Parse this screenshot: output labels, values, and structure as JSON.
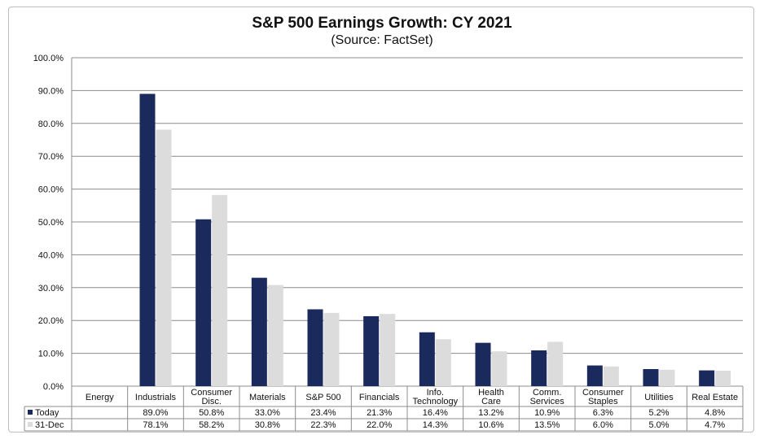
{
  "chart_data": {
    "type": "bar",
    "title": "S&P 500 Earnings Growth: CY 2021",
    "subtitle": "(Source: FactSet)",
    "categories": [
      "Energy",
      "Industrials",
      "Consumer Disc.",
      "Materials",
      "S&P 500",
      "Financials",
      "Info. Technology",
      "Health Care",
      "Comm. Services",
      "Consumer Staples",
      "Utilities",
      "Real Estate"
    ],
    "series": [
      {
        "name": "Today",
        "color": "#1b2a5c",
        "values": [
          null,
          89.0,
          50.8,
          33.0,
          23.4,
          21.3,
          16.4,
          13.2,
          10.9,
          6.3,
          5.2,
          4.8
        ],
        "labels": [
          "",
          "89.0%",
          "50.8%",
          "33.0%",
          "23.4%",
          "21.3%",
          "16.4%",
          "13.2%",
          "10.9%",
          "6.3%",
          "5.2%",
          "4.8%"
        ]
      },
      {
        "name": "31-Dec",
        "color": "#dcdcdc",
        "values": [
          null,
          78.1,
          58.2,
          30.8,
          22.3,
          22.0,
          14.3,
          10.6,
          13.5,
          6.0,
          5.0,
          4.7
        ],
        "labels": [
          "",
          "78.1%",
          "58.2%",
          "30.8%",
          "22.3%",
          "22.0%",
          "14.3%",
          "10.6%",
          "13.5%",
          "6.0%",
          "5.0%",
          "4.7%"
        ]
      }
    ],
    "ylim": [
      0,
      100
    ],
    "yticks": [
      "0.0%",
      "10.0%",
      "20.0%",
      "30.0%",
      "40.0%",
      "50.0%",
      "60.0%",
      "70.0%",
      "80.0%",
      "90.0%",
      "100.0%"
    ],
    "grid": true,
    "legend": "data-table-bottom"
  }
}
